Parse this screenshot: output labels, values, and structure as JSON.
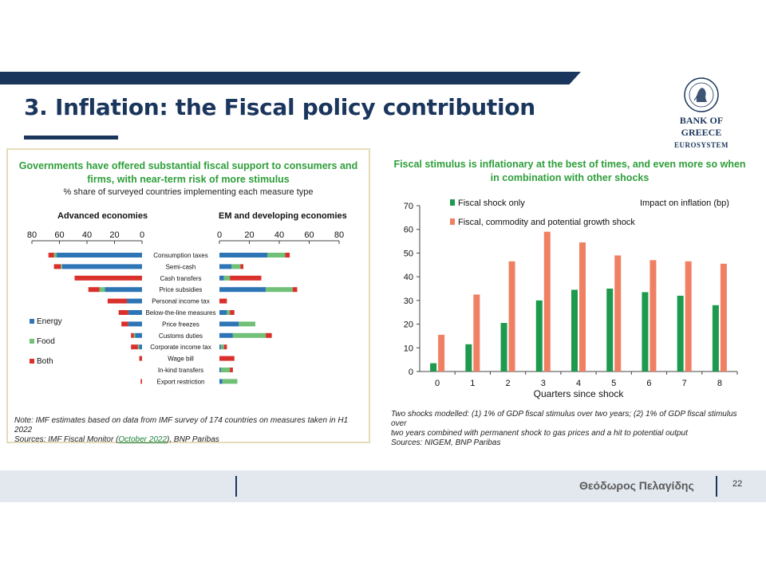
{
  "slide": {
    "title": "3. Inflation: the Fiscal policy contribution",
    "logo_name": "BANK OF GREECE",
    "logo_sub": "EUROSYSTEM",
    "footer_name": "Θεόδωρος Πελαγίδης",
    "page_number": "22",
    "colors": {
      "navy": "#1b365d",
      "green_title": "#2e9e3a"
    }
  },
  "left": {
    "title_line1": "Governments have offered substantial fiscal support to consumers and",
    "title_line2": "firms, with near-term risk of more stimulus",
    "subtitle": "% share of surveyed countries implementing each measure type",
    "note_line1": "Note: IMF estimates based on data from IMF survey of 174 countries on measures taken in H1 2022",
    "note_prefix": "Sources: IMF Fiscal Monitor (",
    "note_link": "October 2022",
    "note_suffix": "), BNP Paribas"
  },
  "right": {
    "title_line1": "Fiscal stimulus is inflationary at the best of times, and even more so when",
    "title_line2": "in combination with other shocks",
    "note_line1": "Two shocks modelled: (1) 1% of GDP fiscal stimulus over two years; (2) 1% of GDP fiscal stimulus over",
    "note_line2": "two years combined with permanent shock to gas prices and a hit to potential output",
    "note_line3": "Sources: NIGEM, BNP Paribas"
  },
  "chart_data": [
    {
      "type": "bar",
      "orientation": "horizontal-stacked-diverging",
      "panel_titles": [
        "Advanced economies",
        "EM and developing economies"
      ],
      "categories": [
        "Consumption taxes",
        "Semi-cash",
        "Cash transfers",
        "Price subsidies",
        "Personal income tax",
        "Below-the-line measures",
        "Price freezes",
        "Customs duties",
        "Corporate income tax",
        "Wage bill",
        "In-kind transfers",
        "Export restriction"
      ],
      "series_colors": {
        "Energy": "#2e75b6",
        "Food": "#70c077",
        "Both": "#d9302c"
      },
      "legend": [
        "Energy",
        "Food",
        "Both"
      ],
      "advanced": {
        "ticks": [
          80,
          60,
          40,
          20,
          0
        ],
        "xlim": [
          0,
          80
        ],
        "series": [
          {
            "name": "Energy",
            "values": [
              62,
              58,
              0,
              27,
              11,
              10,
              10,
              5,
              2,
              0,
              0,
              0
            ]
          },
          {
            "name": "Food",
            "values": [
              2,
              1,
              0,
              4,
              0,
              0,
              0,
              1,
              1,
              0,
              0,
              0
            ]
          },
          {
            "name": "Both",
            "values": [
              4,
              5,
              49,
              8,
              14,
              7,
              5,
              2,
              5,
              2,
              0,
              1
            ]
          }
        ]
      },
      "em": {
        "ticks": [
          0,
          20,
          40,
          60,
          80
        ],
        "xlim": [
          0,
          80
        ],
        "series": [
          {
            "name": "Energy",
            "values": [
              32,
              8,
              3,
              31,
              0,
              5,
              13,
              9,
              1,
              0,
              1,
              2
            ]
          },
          {
            "name": "Food",
            "values": [
              12,
              6,
              4,
              18,
              0,
              2,
              11,
              22,
              2,
              0,
              6,
              10
            ]
          },
          {
            "name": "Both",
            "values": [
              3,
              2,
              21,
              3,
              5,
              3,
              0,
              4,
              2,
              10,
              2,
              0
            ]
          }
        ]
      }
    },
    {
      "type": "bar",
      "x": [
        0,
        1,
        2,
        3,
        4,
        5,
        6,
        7,
        8
      ],
      "xlabel": "Quarters since shock",
      "ylabel_note": "Impact on inflation (bp)",
      "ylim": [
        0,
        70
      ],
      "yticks": [
        0,
        10,
        20,
        30,
        40,
        50,
        60,
        70
      ],
      "series": [
        {
          "name": "Fiscal shock only",
          "color": "#1e9a4e",
          "values": [
            3.5,
            11.5,
            20.5,
            30,
            34.5,
            35,
            33.5,
            32,
            28
          ]
        },
        {
          "name": "Fiscal, commodity and potential growth shock",
          "color": "#f08063",
          "values": [
            15.5,
            32.5,
            46.5,
            59,
            54.5,
            49,
            47,
            46.5,
            45.5
          ]
        }
      ]
    }
  ]
}
